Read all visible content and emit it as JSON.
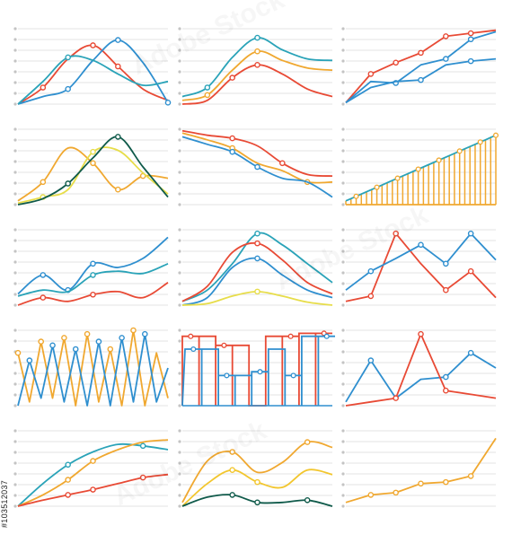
{
  "stock_id": "#103512037",
  "colors": {
    "red": "#e84a35",
    "blue": "#2f8fcf",
    "teal": "#2aa3b8",
    "orange": "#f0a830",
    "yellow": "#f2c62e",
    "darkgreen": "#0f5a4a",
    "lightyellow": "#e7dd4a",
    "grid": "#e3e3e3",
    "tick": "#c4c4c4"
  },
  "chart_data": [
    {
      "type": "line",
      "curve": "smooth",
      "grid": true,
      "ylim": [
        0,
        100
      ],
      "x": [
        0,
        1,
        2,
        3,
        4,
        5,
        6
      ],
      "series": [
        {
          "color": "red",
          "values": [
            0,
            22,
            60,
            78,
            50,
            20,
            5
          ],
          "markers": [
            1,
            3,
            4
          ]
        },
        {
          "color": "blue",
          "values": [
            0,
            10,
            20,
            58,
            85,
            55,
            2
          ],
          "markers": [
            2,
            4,
            6
          ]
        },
        {
          "color": "teal",
          "values": [
            0,
            30,
            62,
            58,
            40,
            25,
            30
          ],
          "markers": [
            2
          ]
        }
      ]
    },
    {
      "type": "line",
      "curve": "smooth",
      "grid": true,
      "ylim": [
        0,
        100
      ],
      "x": [
        0,
        1,
        2,
        3,
        4,
        5,
        6
      ],
      "series": [
        {
          "color": "teal",
          "values": [
            10,
            22,
            62,
            88,
            72,
            60,
            58
          ],
          "markers": [
            1,
            3
          ]
        },
        {
          "color": "orange",
          "values": [
            5,
            12,
            45,
            70,
            58,
            48,
            45
          ],
          "markers": [
            1,
            3
          ]
        },
        {
          "color": "red",
          "values": [
            0,
            5,
            35,
            52,
            40,
            20,
            10
          ],
          "markers": [
            2,
            3
          ]
        }
      ]
    },
    {
      "type": "line",
      "curve": "straight",
      "grid": true,
      "ylim": [
        0,
        100
      ],
      "x": [
        0,
        1,
        2,
        3,
        4,
        5,
        6
      ],
      "series": [
        {
          "color": "red",
          "values": [
            2,
            40,
            55,
            68,
            90,
            94,
            98
          ],
          "markers": [
            1,
            2,
            3,
            4,
            5
          ]
        },
        {
          "color": "blue",
          "values": [
            2,
            30,
            28,
            52,
            60,
            86,
            96
          ],
          "markers": [
            2,
            4,
            5
          ]
        },
        {
          "color": "blue",
          "values": [
            2,
            22,
            30,
            32,
            52,
            57,
            60
          ],
          "markers": [
            3,
            5
          ]
        }
      ]
    },
    {
      "type": "line",
      "curve": "smooth",
      "grid": true,
      "ylim": [
        0,
        100
      ],
      "x": [
        0,
        1,
        2,
        3,
        4,
        5,
        6
      ],
      "series": [
        {
          "color": "orange",
          "values": [
            5,
            30,
            75,
            55,
            20,
            38,
            35
          ],
          "markers": [
            1,
            3,
            4,
            5
          ]
        },
        {
          "color": "lightyellow",
          "values": [
            2,
            10,
            20,
            70,
            72,
            42,
            14
          ],
          "markers": [
            1,
            3
          ]
        },
        {
          "color": "darkgreen",
          "values": [
            0,
            8,
            28,
            62,
            90,
            50,
            10
          ],
          "markers": [
            2,
            4
          ]
        }
      ]
    },
    {
      "type": "line",
      "curve": "smooth",
      "grid": true,
      "ylim": [
        0,
        100
      ],
      "x": [
        0,
        1,
        2,
        3,
        4,
        5,
        6
      ],
      "series": [
        {
          "color": "red",
          "values": [
            98,
            92,
            88,
            78,
            55,
            40,
            38
          ],
          "markers": [
            2,
            4
          ]
        },
        {
          "color": "orange",
          "values": [
            95,
            86,
            75,
            55,
            45,
            30,
            30
          ],
          "markers": [
            2,
            5
          ]
        },
        {
          "color": "blue",
          "values": [
            90,
            80,
            70,
            50,
            35,
            30,
            10
          ],
          "markers": [
            2,
            3
          ]
        }
      ]
    },
    {
      "type": "bar",
      "style": "area-stem",
      "grid": true,
      "ylim": [
        0,
        100
      ],
      "values": [
        5,
        8,
        11,
        14,
        17,
        20,
        23,
        26,
        29,
        32,
        35,
        38,
        41,
        44,
        47,
        50,
        53,
        56,
        59,
        62,
        65,
        68,
        71,
        74,
        77,
        80,
        83,
        86,
        89,
        92
      ],
      "color": "orange",
      "line_color": "teal",
      "markers": [
        2,
        6,
        10,
        14,
        18,
        22,
        26,
        29
      ]
    },
    {
      "type": "line",
      "curve": "smooth",
      "grid": true,
      "ylim": [
        0,
        100
      ],
      "x": [
        0,
        1,
        2,
        3,
        4,
        5,
        6
      ],
      "series": [
        {
          "color": "blue",
          "values": [
            15,
            40,
            20,
            55,
            50,
            62,
            90
          ],
          "markers": [
            1,
            2,
            3
          ]
        },
        {
          "color": "teal",
          "values": [
            12,
            20,
            18,
            40,
            45,
            42,
            55
          ],
          "markers": [
            3
          ]
        },
        {
          "color": "red",
          "values": [
            0,
            10,
            5,
            14,
            18,
            10,
            30
          ],
          "markers": [
            1,
            3
          ]
        }
      ]
    },
    {
      "type": "line",
      "curve": "smooth",
      "grid": true,
      "ylim": [
        0,
        100
      ],
      "x": [
        0,
        1,
        2,
        3,
        4,
        5,
        6
      ],
      "series": [
        {
          "color": "teal",
          "values": [
            5,
            20,
            55,
            95,
            80,
            55,
            30
          ],
          "markers": [
            3
          ]
        },
        {
          "color": "red",
          "values": [
            5,
            25,
            70,
            82,
            60,
            30,
            15
          ],
          "markers": [
            3
          ]
        },
        {
          "color": "blue",
          "values": [
            0,
            10,
            50,
            62,
            40,
            20,
            10
          ],
          "markers": [
            3
          ]
        },
        {
          "color": "lightyellow",
          "values": [
            0,
            2,
            12,
            18,
            12,
            4,
            0
          ],
          "markers": [
            3
          ]
        }
      ]
    },
    {
      "type": "line",
      "curve": "straight",
      "grid": true,
      "ylim": [
        0,
        100
      ],
      "x": [
        0,
        1,
        2,
        3,
        4,
        5,
        6
      ],
      "series": [
        {
          "color": "red",
          "values": [
            5,
            12,
            95,
            55,
            20,
            45,
            10
          ],
          "markers": [
            1,
            2,
            4,
            5
          ]
        },
        {
          "color": "blue",
          "values": [
            20,
            45,
            62,
            80,
            55,
            95,
            60
          ],
          "markers": [
            1,
            3,
            4,
            5
          ]
        }
      ]
    },
    {
      "type": "line",
      "curve": "straight",
      "grid": true,
      "ylim": [
        0,
        100
      ],
      "x": [
        0,
        1,
        2,
        3,
        4,
        5,
        6,
        7,
        8,
        9,
        10,
        11,
        12,
        13
      ],
      "series": [
        {
          "color": "orange",
          "values": [
            70,
            5,
            85,
            10,
            90,
            0,
            95,
            5,
            75,
            0,
            100,
            0,
            70,
            10
          ],
          "markers": [
            0,
            2,
            4,
            6,
            8,
            10
          ]
        },
        {
          "color": "blue",
          "values": [
            0,
            60,
            10,
            80,
            5,
            75,
            0,
            85,
            0,
            90,
            5,
            95,
            5,
            50
          ],
          "markers": [
            1,
            3,
            5,
            7,
            9,
            11
          ]
        }
      ]
    },
    {
      "type": "bar",
      "style": "step",
      "grid": true,
      "ylim": [
        0,
        100
      ],
      "series": [
        {
          "color": "red",
          "values": [
            92,
            92,
            80,
            80,
            0,
            92,
            92,
            96,
            96
          ]
        },
        {
          "color": "blue",
          "values": [
            75,
            75,
            40,
            40,
            45,
            75,
            40,
            92,
            92
          ]
        }
      ]
    },
    {
      "type": "line",
      "curve": "straight",
      "grid": true,
      "ylim": [
        0,
        100
      ],
      "x": [
        0,
        1,
        2,
        3,
        4,
        5,
        6
      ],
      "series": [
        {
          "color": "blue",
          "values": [
            5,
            60,
            10,
            35,
            38,
            70,
            50
          ],
          "markers": [
            1,
            4,
            5
          ]
        },
        {
          "color": "red",
          "values": [
            0,
            5,
            10,
            95,
            20,
            15,
            10
          ],
          "markers": [
            2,
            3,
            4
          ]
        }
      ]
    },
    {
      "type": "line",
      "curve": "smooth",
      "grid": true,
      "ylim": [
        0,
        100
      ],
      "x": [
        0,
        1,
        2,
        3,
        4,
        5,
        6
      ],
      "series": [
        {
          "color": "teal",
          "values": [
            0,
            30,
            55,
            72,
            82,
            80,
            75
          ],
          "markers": [
            2,
            5
          ]
        },
        {
          "color": "orange",
          "values": [
            0,
            15,
            35,
            60,
            75,
            85,
            88
          ],
          "markers": [
            2,
            3
          ]
        },
        {
          "color": "red",
          "values": [
            0,
            8,
            15,
            22,
            30,
            38,
            42
          ],
          "markers": [
            2,
            3,
            5
          ]
        }
      ]
    },
    {
      "type": "line",
      "curve": "smooth",
      "grid": true,
      "ylim": [
        0,
        100
      ],
      "x": [
        0,
        1,
        2,
        3,
        4,
        5,
        6
      ],
      "series": [
        {
          "color": "orange",
          "values": [
            5,
            60,
            72,
            45,
            58,
            85,
            78
          ],
          "markers": [
            2,
            5
          ]
        },
        {
          "color": "yellow",
          "values": [
            0,
            30,
            48,
            32,
            25,
            48,
            42
          ],
          "markers": [
            2,
            3
          ]
        },
        {
          "color": "darkgreen",
          "values": [
            0,
            12,
            15,
            5,
            5,
            8,
            0
          ],
          "markers": [
            2,
            3,
            5
          ]
        }
      ]
    },
    {
      "type": "line",
      "curve": "straight",
      "grid": true,
      "ylim": [
        0,
        100
      ],
      "x": [
        0,
        1,
        2,
        3,
        4,
        5,
        6
      ],
      "series": [
        {
          "color": "orange",
          "values": [
            5,
            15,
            18,
            30,
            32,
            40,
            90
          ],
          "markers": [
            1,
            2,
            3,
            4,
            5
          ]
        }
      ]
    }
  ]
}
